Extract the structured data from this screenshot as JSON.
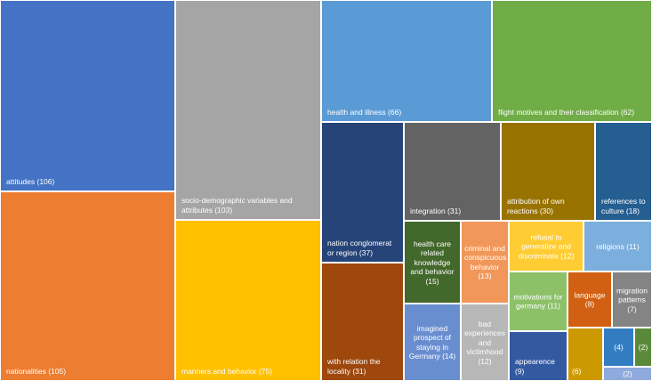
{
  "chart_data": {
    "type": "treemap",
    "items": [
      {
        "label": "attitudes (106)",
        "value": 106,
        "color": "#4472C4"
      },
      {
        "label": "nationalities (105)",
        "value": 105,
        "color": "#ED7D31"
      },
      {
        "label": "socio-demographic variables and attributes (103)",
        "value": 103,
        "color": "#A5A5A5"
      },
      {
        "label": "manners and behavior (75)",
        "value": 75,
        "color": "#FFC000"
      },
      {
        "label": "health and illness (66)",
        "value": 66,
        "color": "#5B9BD5"
      },
      {
        "label": "flight motives and their classification (62)",
        "value": 62,
        "color": "#70AD47"
      },
      {
        "label": "nation conglomerat or region (37)",
        "value": 37,
        "color": "#264478"
      },
      {
        "label": "with relation the locality (31)",
        "value": 31,
        "color": "#9E480E"
      },
      {
        "label": "integration (31)",
        "value": 31,
        "color": "#636363"
      },
      {
        "label": "attribution of own reactions (30)",
        "value": 30,
        "color": "#997300"
      },
      {
        "label": "references to culture (18)",
        "value": 18,
        "color": "#255E91"
      },
      {
        "label": "health care related knowledge and behavior (15)",
        "value": 15,
        "color": "#43682B"
      },
      {
        "label": "imagined prospect of staying in Germany (14)",
        "value": 14,
        "color": "#698ED0"
      },
      {
        "label": "criminal and conspicuous behavior (13)",
        "value": 13,
        "color": "#F1975A"
      },
      {
        "label": "bad experiences and victimhood (12)",
        "value": 12,
        "color": "#B7B7B7"
      },
      {
        "label": "refusal to generalize and discriminate (12)",
        "value": 12,
        "color": "#FFCD33"
      },
      {
        "label": "religions (11)",
        "value": 11,
        "color": "#7CAFDD"
      },
      {
        "label": "motivations for germany (11)",
        "value": 11,
        "color": "#8CC168"
      },
      {
        "label": "appearence (9)",
        "value": 9,
        "color": "#335AA1"
      },
      {
        "label": "language (8)",
        "value": 8,
        "color": "#D26012"
      },
      {
        "label": "migration patterns (7)",
        "value": 7,
        "color": "#848484"
      },
      {
        "label": "(6)",
        "value": 6,
        "color": "#CC9A00"
      },
      {
        "label": "(4)",
        "value": 4,
        "color": "#327DC2"
      },
      {
        "label": "(2)",
        "value": 2,
        "color": "#5A8A39"
      },
      {
        "label": "(2)",
        "value": 2,
        "color": "#8FAADC"
      }
    ]
  }
}
